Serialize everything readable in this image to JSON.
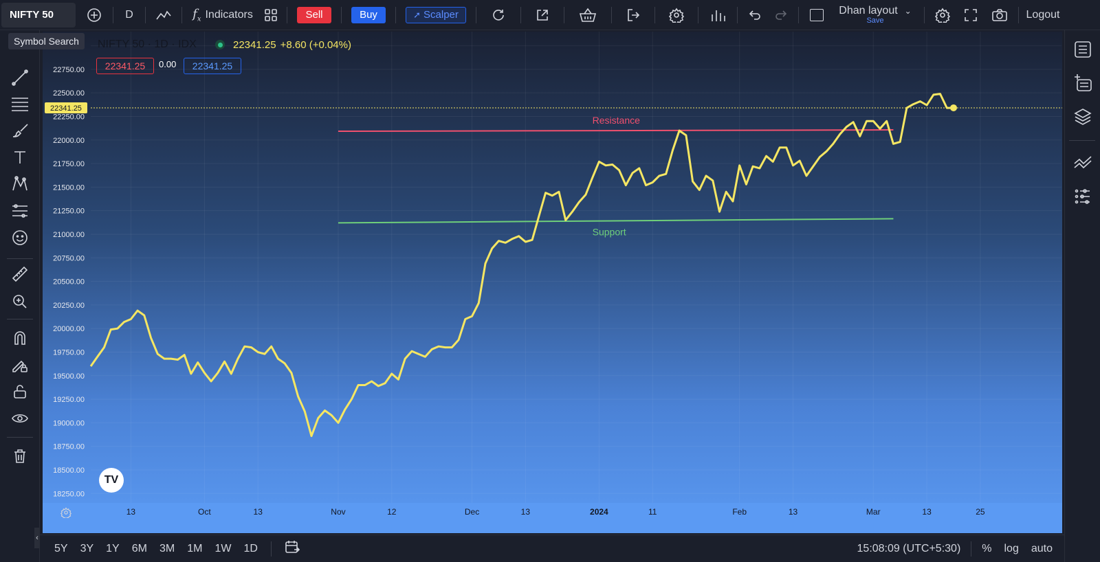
{
  "toolbar": {
    "symbol": "NIFTY 50",
    "interval": "D",
    "indicators_label": "Indicators",
    "sell_label": "Sell",
    "buy_label": "Buy",
    "scalper_label": "Scalper",
    "layout_name": "Dhan layout",
    "layout_save": "Save",
    "logout_label": "Logout"
  },
  "tooltip": {
    "text": "Symbol Search"
  },
  "legend": {
    "title": "NIFTY 50 · 1D · IDX",
    "last": "22341.25",
    "change": "+8.60 (+0.04%)",
    "sell_price": "22341.25",
    "spread": "0.00",
    "buy_price": "22341.25"
  },
  "bottom": {
    "ranges": [
      "5Y",
      "3Y",
      "1Y",
      "6M",
      "3M",
      "1M",
      "1W",
      "1D"
    ],
    "time": "15:08:09 (UTC+5:30)",
    "percent": "%",
    "log": "log",
    "auto": "auto"
  },
  "colors": {
    "line": "#f5e663",
    "resistance": "#f0506e",
    "support": "#6fcf7a",
    "sell": "#e8343f",
    "buy": "#2563eb"
  },
  "chart_data": {
    "type": "line",
    "ylim": [
      18150,
      23150
    ],
    "yticks": [
      23000,
      22750,
      22500,
      22250,
      22000,
      21750,
      21500,
      21250,
      21000,
      20750,
      20500,
      20250,
      20000,
      19750,
      19500,
      19250,
      19000,
      18750,
      18500,
      18250
    ],
    "ytick_labels": [
      "23000.00",
      "22750.00",
      "22500.00",
      "22250.00",
      "22000.00",
      "21750.00",
      "21500.00",
      "21250.00",
      "21000.00",
      "20750.00",
      "20500.00",
      "20250.00",
      "20000.00",
      "19750.00",
      "19500.00",
      "19250.00",
      "19000.00",
      "18750.00",
      "18500.00",
      "18250.00"
    ],
    "xticks": [
      {
        "label": "13",
        "i": 6
      },
      {
        "label": "Oct",
        "i": 17
      },
      {
        "label": "13",
        "i": 25
      },
      {
        "label": "Nov",
        "i": 37
      },
      {
        "label": "12",
        "i": 45
      },
      {
        "label": "Dec",
        "i": 57
      },
      {
        "label": "13",
        "i": 65
      },
      {
        "label": "2024",
        "i": 76,
        "bold": true
      },
      {
        "label": "11",
        "i": 84
      },
      {
        "label": "Feb",
        "i": 97
      },
      {
        "label": "13",
        "i": 105
      },
      {
        "label": "Mar",
        "i": 117
      },
      {
        "label": "13",
        "i": 125
      },
      {
        "label": "25",
        "i": 133
      }
    ],
    "x_max_index": 137,
    "last_price_label": "22341.25",
    "last_price": 22341.25,
    "series": [
      {
        "values": [
          19600,
          19700,
          19800,
          19990,
          20000,
          20070,
          20100,
          20190,
          20140,
          19900,
          19730,
          19680,
          19680,
          19670,
          19720,
          19520,
          19640,
          19530,
          19440,
          19530,
          19650,
          19520,
          19680,
          19810,
          19800,
          19750,
          19730,
          19810,
          19680,
          19630,
          19530,
          19280,
          19120,
          18860,
          19050,
          19130,
          19080,
          19000,
          19140,
          19250,
          19400,
          19400,
          19440,
          19390,
          19420,
          19520,
          19460,
          19680,
          19760,
          19730,
          19700,
          19780,
          19810,
          19800,
          19800,
          19880,
          20100,
          20130,
          20270,
          20690,
          20850,
          20930,
          20910,
          20950,
          20980,
          20920,
          20940,
          21190,
          21440,
          21410,
          21450,
          21150,
          21240,
          21340,
          21420,
          21600,
          21770,
          21730,
          21740,
          21680,
          21520,
          21650,
          21700,
          21520,
          21550,
          21620,
          21640,
          21890,
          22100,
          22050,
          21560,
          21470,
          21620,
          21570,
          21240,
          21450,
          21350,
          21730,
          21530,
          21720,
          21700,
          21830,
          21770,
          21920,
          21920,
          21730,
          21780,
          21620,
          21720,
          21820,
          21880,
          21960,
          22060,
          22140,
          22190,
          22040,
          22200,
          22200,
          22120,
          22200,
          21960,
          21980,
          22340,
          22380,
          22410,
          22370,
          22480,
          22490,
          22340,
          22341.25
        ]
      }
    ],
    "annotations": [
      {
        "label": "Resistance",
        "y": 22100
      },
      {
        "label": "Support",
        "y": 21150
      }
    ]
  }
}
